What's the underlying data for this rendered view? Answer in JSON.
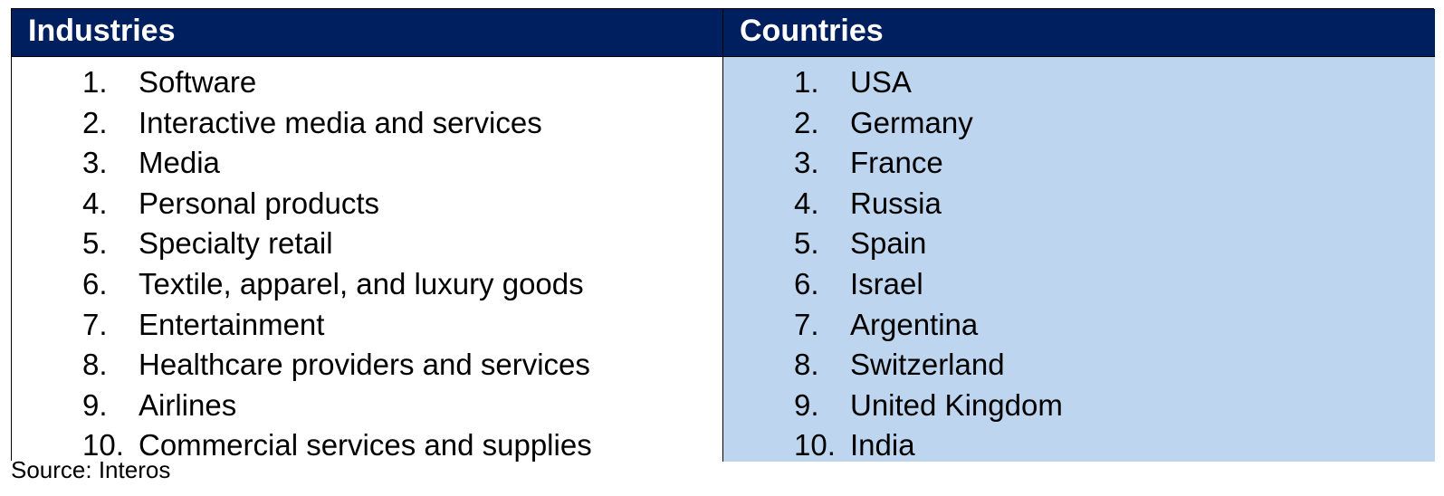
{
  "table": {
    "headers": {
      "industries": "Industries",
      "countries": "Countries"
    },
    "industries": [
      {
        "num": "1.",
        "label": "Software"
      },
      {
        "num": "2.",
        "label": "Interactive media and services"
      },
      {
        "num": "3.",
        "label": "Media"
      },
      {
        "num": "4.",
        "label": "Personal products"
      },
      {
        "num": "5.",
        "label": "Specialty retail"
      },
      {
        "num": "6.",
        "label": "Textile, apparel, and luxury goods"
      },
      {
        "num": "7.",
        "label": "Entertainment"
      },
      {
        "num": "8.",
        "label": "Healthcare providers and services"
      },
      {
        "num": "9.",
        "label": "Airlines"
      },
      {
        "num": "10.",
        "label": "Commercial services and supplies"
      }
    ],
    "countries": [
      {
        "num": "1.",
        "label": "USA"
      },
      {
        "num": "2.",
        "label": "Germany"
      },
      {
        "num": "3.",
        "label": "France"
      },
      {
        "num": "4.",
        "label": "Russia"
      },
      {
        "num": "5.",
        "label": "Spain"
      },
      {
        "num": "6.",
        "label": "Israel"
      },
      {
        "num": "7.",
        "label": "Argentina"
      },
      {
        "num": "8.",
        "label": "Switzerland"
      },
      {
        "num": "9.",
        "label": "United Kingdom"
      },
      {
        "num": "10.",
        "label": "India"
      }
    ]
  },
  "source": "Source: Interos",
  "colors": {
    "header_bg": "#001f5f",
    "header_text": "#ffffff",
    "countries_bg": "#bdd5ee"
  }
}
